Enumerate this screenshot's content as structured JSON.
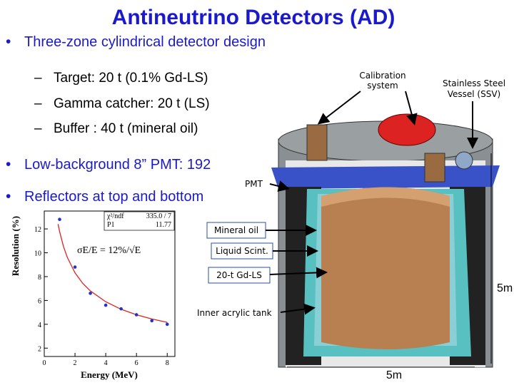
{
  "title": "Antineutrino Detectors (AD)",
  "bullets": [
    {
      "text": "Three-zone cylindrical detector design",
      "sub": [
        "Target: 20 t (0.1% Gd-LS)",
        "Gamma catcher: 20 t (LS)",
        "Buffer : 40 t (mineral oil)"
      ]
    },
    {
      "text": "Low-background 8” PMT: 192"
    },
    {
      "text": "Reflectors at top and bottom"
    }
  ],
  "labels": {
    "calibration": [
      "Calibration",
      "system"
    ],
    "ssv": [
      "Stainless Steel",
      "Vessel (SSV)"
    ],
    "pmt": "PMT",
    "mineral_oil": "Mineral oil",
    "liquid_scint": "Liquid Scint.",
    "gdls": "20-t Gd-LS",
    "inner_tank": "Inner acrylic tank",
    "height": "5m",
    "width": "5m"
  },
  "chart_data": {
    "type": "scatter",
    "x_label": "Energy (MeV)",
    "y_label": "Resolution (%)",
    "annotation": "σE/E = 12%/√E",
    "stats": [
      [
        "χ²/ndf",
        "335.0 / 7"
      ],
      [
        "P1",
        "11.77"
      ]
    ],
    "x": [
      1,
      2,
      3,
      4,
      5,
      6,
      7,
      8
    ],
    "values": [
      12.8,
      8.8,
      6.6,
      5.6,
      5.3,
      4.8,
      4.3,
      4.0
    ],
    "color": "#2233cc",
    "fit": {
      "x": [
        0.9,
        1,
        1.25,
        1.5,
        2,
        2.5,
        3,
        4,
        5,
        6,
        7,
        8
      ],
      "values": [
        12.41,
        11.77,
        10.53,
        9.61,
        8.32,
        7.44,
        6.8,
        5.89,
        5.26,
        4.8,
        4.45,
        4.16
      ],
      "color": "#dd2222"
    },
    "xlim": [
      0,
      8.5
    ],
    "ylim": [
      1.3,
      13.5
    ],
    "xticks": [
      0,
      2,
      4,
      6,
      8
    ],
    "yticks": [
      2,
      4,
      6,
      8,
      10,
      12
    ]
  }
}
